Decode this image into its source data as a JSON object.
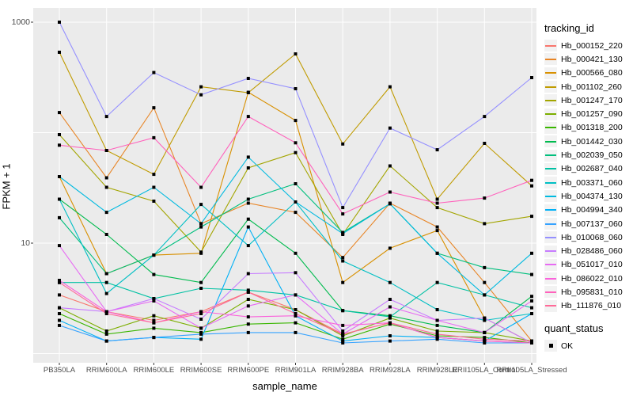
{
  "figure": {
    "y_axis": {
      "label": "FPKM + 1",
      "scale": "log10",
      "tick_labels": {
        "t1000": "1000",
        "t10": "10"
      },
      "unlabeled_gridlines": [
        100,
        1
      ]
    },
    "x_axis": {
      "label": "sample_name"
    },
    "legend": {
      "color_legend_title": "tracking_id",
      "shape_legend_title": "quant_status",
      "shape_items": [
        {
          "label": "OK",
          "shape": "filled-black-square"
        }
      ]
    },
    "colors": {
      "panel_background": "#EBEBEB",
      "gridline": "#FFFFFF",
      "point": "#000000",
      "tick_text": "#4D4D4D",
      "axis_text": "#000000"
    }
  },
  "chart_data": {
    "type": "line",
    "title": "",
    "xlabel": "sample_name",
    "ylabel": "FPKM + 1",
    "yscale": "log10",
    "ylim": [
      0.85,
      1100
    ],
    "y_labeled_breaks": [
      1000,
      10
    ],
    "y_gridline_breaks": [
      1,
      10,
      100,
      1000
    ],
    "legend_position": "right",
    "grid": true,
    "markers": "black squares at every point (quant_status = OK)",
    "categories": [
      "PB350LA",
      "RRIM600LA",
      "RRIM600LE",
      "RRIM600SE",
      "RRIM600PE",
      "RRIM901LA",
      "RRIM928BA",
      "RRIM928LA",
      "RRIM928LE",
      "RRII105LA_Control",
      "RRII105LA_Stressed"
    ],
    "series": [
      {
        "name": "Hb_000152_220",
        "color": "#F8766D",
        "values": [
          3.4,
          2.4,
          2.0,
          2.4,
          3.6,
          2.5,
          1.5,
          1.9,
          1.4,
          1.3,
          1.25
        ]
      },
      {
        "name": "Hb_000421_130",
        "color": "#E88526",
        "values": [
          152,
          39,
          168,
          15,
          23,
          19,
          7.4,
          23,
          14,
          4.4,
          1.3
        ]
      },
      {
        "name": "Hb_000566_080",
        "color": "#D89000",
        "values": [
          40,
          5.3,
          7.8,
          8.1,
          232,
          129,
          4.4,
          9,
          13,
          2.1,
          1.25
        ]
      },
      {
        "name": "Hb_001102_260",
        "color": "#C09B00",
        "values": [
          534,
          69,
          42,
          260,
          230,
          516,
          79,
          260,
          25,
          80,
          33
        ]
      },
      {
        "name": "Hb_001247_170",
        "color": "#A3A500",
        "values": [
          96,
          32,
          24,
          8.3,
          48,
          66,
          12,
          50,
          21,
          15,
          17.5
        ]
      },
      {
        "name": "Hb_001257_090",
        "color": "#7CAE00",
        "values": [
          2.6,
          1.6,
          2.2,
          1.7,
          3.1,
          2.5,
          1.45,
          2.1,
          1.6,
          1.55,
          1.3
        ]
      },
      {
        "name": "Hb_001318_200",
        "color": "#39B600",
        "values": [
          2.3,
          1.5,
          1.7,
          1.55,
          1.85,
          1.9,
          1.35,
          1.85,
          1.45,
          1.4,
          1.25
        ]
      },
      {
        "name": "Hb_001442_030",
        "color": "#00BB4E",
        "values": [
          25,
          12,
          5.2,
          4.4,
          16.5,
          8.1,
          2.45,
          2.2,
          1.8,
          1.55,
          3.3
        ]
      },
      {
        "name": "Hb_002039_050",
        "color": "#00BF7D",
        "values": [
          17,
          5.3,
          7.8,
          14,
          25,
          34.5,
          12.5,
          22.7,
          8.1,
          6,
          5.2
        ]
      },
      {
        "name": "Hb_002687_040",
        "color": "#00C1A3",
        "values": [
          4.4,
          4.4,
          3.15,
          3.9,
          3.75,
          3.4,
          2.45,
          2.15,
          4.4,
          3.4,
          2.6
        ]
      },
      {
        "name": "Hb_003371_060",
        "color": "#00BFC4",
        "values": [
          25,
          3.5,
          7.8,
          22.4,
          9.5,
          23.6,
          6.9,
          4.4,
          2.5,
          2.0,
          2.3
        ]
      },
      {
        "name": "Hb_004374_130",
        "color": "#00BAE0",
        "values": [
          40,
          19,
          32,
          15,
          60,
          23.6,
          12.2,
          22.7,
          8.1,
          3.4,
          8.1
        ]
      },
      {
        "name": "Hb_004994_340",
        "color": "#00B0F6",
        "values": [
          2.0,
          1.3,
          1.4,
          1.35,
          14,
          2.2,
          1.3,
          1.45,
          1.4,
          1.3,
          2.3
        ]
      },
      {
        "name": "Hb_007137_060",
        "color": "#35A2FF",
        "values": [
          1.8,
          1.3,
          1.4,
          1.5,
          1.55,
          1.55,
          1.25,
          1.3,
          1.35,
          1.25,
          1.25
        ]
      },
      {
        "name": "Hb_010068_060",
        "color": "#9590FF",
        "values": [
          1000,
          140,
          350,
          220,
          310,
          250,
          21,
          110,
          70,
          140,
          315
        ]
      },
      {
        "name": "Hb_028486_060",
        "color": "#C77CFF",
        "values": [
          2.6,
          2.4,
          3.15,
          2.05,
          5.3,
          5.4,
          1.6,
          3.1,
          2.0,
          2.1,
          1.25
        ]
      },
      {
        "name": "Hb_051017_010",
        "color": "#E76BF3",
        "values": [
          9.5,
          2.4,
          3.0,
          1.7,
          2.7,
          3.4,
          1.5,
          2.65,
          2.0,
          1.55,
          3.0
        ]
      },
      {
        "name": "Hb_086022_010",
        "color": "#FA62DB",
        "values": [
          4.6,
          2.4,
          1.9,
          2.4,
          2.15,
          2.2,
          1.8,
          1.9,
          1.4,
          1.3,
          1.25
        ]
      },
      {
        "name": "Hb_095831_010",
        "color": "#FF62BC",
        "values": [
          77,
          69,
          90,
          32,
          140,
          81,
          18.4,
          29,
          23,
          25.6,
          37
        ]
      },
      {
        "name": "Hb_111876_010",
        "color": "#FF6A98",
        "values": [
          4.4,
          2.3,
          1.9,
          2.3,
          3.6,
          2.3,
          1.5,
          1.9,
          1.5,
          1.35,
          1.3
        ]
      }
    ]
  }
}
